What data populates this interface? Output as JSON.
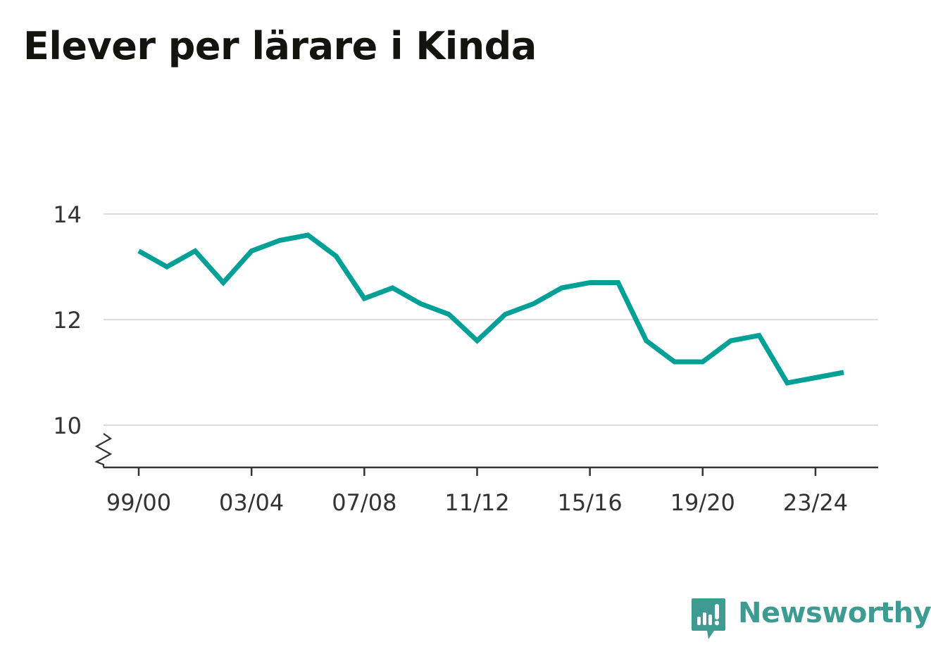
{
  "chart_data": {
    "type": "line",
    "title": "Elever per lärare i Kinda",
    "xlabel": "",
    "ylabel": "",
    "x": [
      "99/00",
      "00/01",
      "01/02",
      "02/03",
      "03/04",
      "04/05",
      "05/06",
      "06/07",
      "07/08",
      "08/09",
      "09/10",
      "10/11",
      "11/12",
      "12/13",
      "13/14",
      "14/15",
      "15/16",
      "16/17",
      "17/18",
      "18/19",
      "19/20",
      "20/21",
      "21/22",
      "22/23",
      "23/24",
      "24/25"
    ],
    "values": [
      13.3,
      13.0,
      13.3,
      12.7,
      13.3,
      13.5,
      13.6,
      13.2,
      12.4,
      12.6,
      12.3,
      12.1,
      11.6,
      12.1,
      12.3,
      12.6,
      12.7,
      12.7,
      11.6,
      11.2,
      11.2,
      11.6,
      11.7,
      10.8,
      10.9,
      11.0
    ],
    "ylim": [
      10,
      14
    ],
    "y_ticks": [
      "10",
      "12",
      "14"
    ],
    "x_ticks": [
      "99/00",
      "03/04",
      "07/08",
      "11/12",
      "15/16",
      "19/20",
      "23/24"
    ],
    "line_color": "#00a097",
    "grid": true,
    "y_axis_break": true
  },
  "brand": {
    "name": "Newsworthy",
    "color": "#3e9b91",
    "icon": "newsworthy-logo-icon"
  }
}
